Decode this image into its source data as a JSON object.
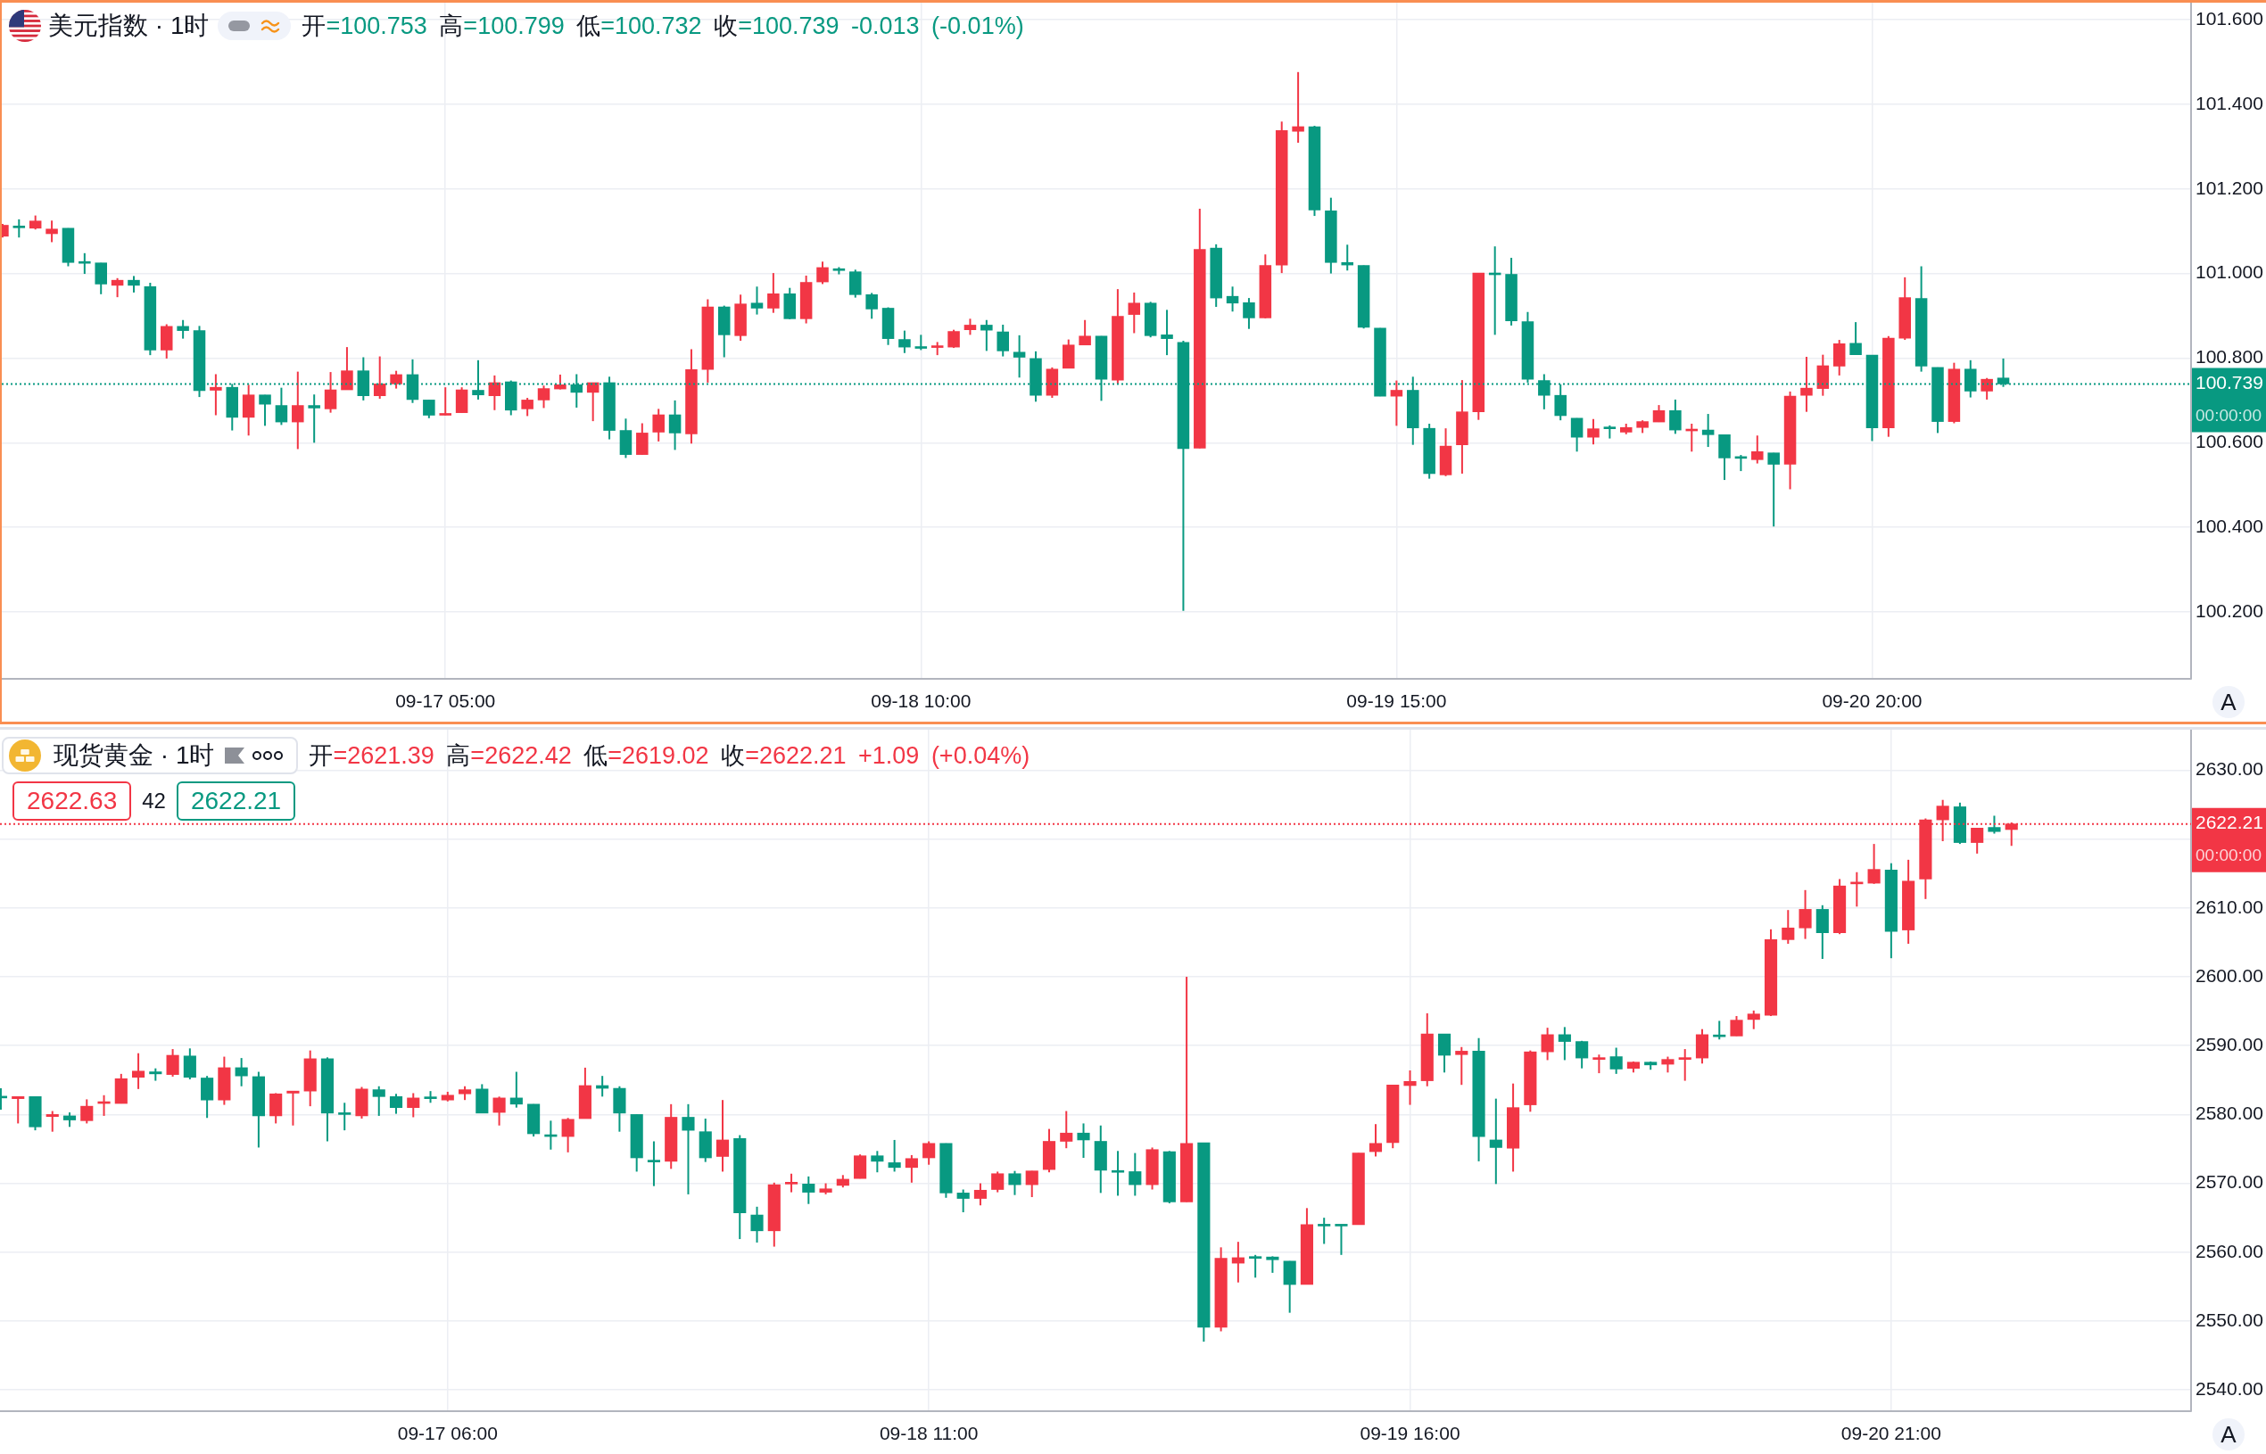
{
  "chart_data": [
    {
      "type": "candlestick",
      "title": "美元指数 · 1时",
      "subtitle": "开=100.753 高=100.799 低=100.732 收=100.739 -0.013 (-0.01%)",
      "categories": [
        null,
        null,
        null,
        null,
        null,
        null,
        null,
        null,
        null,
        null,
        null,
        null,
        null,
        null,
        null,
        null,
        null,
        null,
        null,
        null,
        null,
        null,
        null,
        null,
        null,
        null,
        null,
        "09-17 05:00",
        null,
        null,
        null,
        null,
        null,
        null,
        null,
        null,
        null,
        null,
        null,
        null,
        null,
        null,
        null,
        null,
        null,
        null,
        null,
        null,
        null,
        null,
        null,
        null,
        null,
        null,
        null,
        null,
        "09-18 10:00",
        null,
        null,
        null,
        null,
        null,
        null,
        null,
        null,
        null,
        null,
        null,
        null,
        null,
        null,
        null,
        null,
        null,
        null,
        null,
        null,
        null,
        null,
        null,
        null,
        null,
        null,
        null,
        null,
        "09-19 15:00",
        null,
        null,
        null,
        null,
        null,
        null,
        null,
        null,
        null,
        null,
        null,
        null,
        null,
        null,
        null,
        null,
        null,
        null,
        null,
        null,
        null,
        null,
        null,
        null,
        null,
        null,
        null,
        null,
        "09-20 20:00",
        null,
        null,
        null,
        null,
        null,
        null,
        null,
        null,
        null,
        null,
        null,
        null,
        null,
        null,
        null,
        null,
        null,
        null,
        null
      ],
      "ohlc": [
        [
          101.088,
          101.117,
          101.085,
          101.114
        ],
        [
          101.112,
          101.128,
          101.085,
          101.108
        ],
        [
          101.107,
          101.137,
          101.104,
          101.124
        ],
        [
          101.094,
          101.125,
          101.074,
          101.105
        ],
        [
          101.107,
          101.107,
          101.017,
          101.026
        ],
        [
          101.027,
          101.048,
          100.999,
          101.024
        ],
        [
          101.025,
          101.025,
          100.951,
          100.975
        ],
        [
          100.972,
          100.989,
          100.944,
          100.984
        ],
        [
          100.984,
          100.994,
          100.955,
          100.972
        ],
        [
          100.969,
          100.978,
          100.807,
          100.819
        ],
        [
          100.819,
          100.88,
          100.799,
          100.875
        ],
        [
          100.875,
          100.89,
          100.846,
          100.865
        ],
        [
          100.865,
          100.876,
          100.708,
          100.723
        ],
        [
          100.724,
          100.762,
          100.665,
          100.731
        ],
        [
          100.731,
          100.739,
          100.629,
          100.66
        ],
        [
          100.66,
          100.737,
          100.617,
          100.713
        ],
        [
          100.713,
          100.713,
          100.64,
          100.691
        ],
        [
          100.688,
          100.73,
          100.642,
          100.649
        ],
        [
          100.649,
          100.768,
          100.585,
          100.688
        ],
        [
          100.688,
          100.714,
          100.6,
          100.682
        ],
        [
          100.68,
          100.767,
          100.671,
          100.725
        ],
        [
          100.725,
          100.826,
          100.725,
          100.77
        ],
        [
          100.77,
          100.802,
          100.7,
          100.711
        ],
        [
          100.711,
          100.804,
          100.704,
          100.739
        ],
        [
          100.739,
          100.77,
          100.728,
          100.761
        ],
        [
          100.761,
          100.797,
          100.694,
          100.702
        ],
        [
          100.701,
          100.701,
          100.658,
          100.665
        ],
        [
          100.665,
          100.731,
          100.665,
          100.668
        ],
        [
          100.671,
          100.731,
          100.671,
          100.725
        ],
        [
          100.724,
          100.795,
          100.702,
          100.713
        ],
        [
          100.711,
          100.759,
          100.677,
          100.742
        ],
        [
          100.744,
          100.747,
          100.665,
          100.677
        ],
        [
          100.68,
          100.706,
          100.663,
          100.701
        ],
        [
          100.701,
          100.735,
          100.682,
          100.728
        ],
        [
          100.727,
          100.761,
          100.726,
          100.737
        ],
        [
          100.737,
          100.762,
          100.683,
          100.719
        ],
        [
          100.719,
          100.742,
          100.651,
          100.742
        ],
        [
          100.742,
          100.756,
          100.608,
          100.629
        ],
        [
          100.629,
          100.657,
          100.564,
          100.572
        ],
        [
          100.572,
          100.646,
          100.572,
          100.623
        ],
        [
          100.625,
          100.68,
          100.603,
          100.666
        ],
        [
          100.666,
          100.7,
          100.583,
          100.623
        ],
        [
          100.621,
          100.821,
          100.598,
          100.773
        ],
        [
          100.773,
          100.939,
          100.742,
          100.921
        ],
        [
          100.921,
          100.924,
          100.802,
          100.855
        ],
        [
          100.853,
          100.95,
          100.841,
          100.928
        ],
        [
          100.93,
          100.969,
          100.903,
          100.918
        ],
        [
          100.918,
          101.001,
          100.907,
          100.952
        ],
        [
          100.952,
          100.966,
          100.892,
          100.893
        ],
        [
          100.893,
          100.995,
          100.882,
          100.979
        ],
        [
          100.98,
          101.028,
          100.975,
          101.014
        ],
        [
          101.011,
          101.015,
          100.998,
          101.007
        ],
        [
          101.004,
          101.009,
          100.943,
          100.95
        ],
        [
          100.95,
          100.954,
          100.893,
          100.916
        ],
        [
          100.918,
          100.92,
          100.831,
          100.846
        ],
        [
          100.844,
          100.865,
          100.812,
          100.826
        ],
        [
          100.826,
          100.855,
          100.819,
          100.823
        ],
        [
          100.825,
          100.838,
          100.807,
          100.828
        ],
        [
          100.826,
          100.867,
          100.824,
          100.863
        ],
        [
          100.867,
          100.893,
          100.855,
          100.878
        ],
        [
          100.878,
          100.89,
          100.817,
          100.866
        ],
        [
          100.862,
          100.879,
          100.804,
          100.817
        ],
        [
          100.814,
          100.854,
          100.754,
          100.802
        ],
        [
          100.799,
          100.816,
          100.697,
          100.712
        ],
        [
          100.712,
          100.778,
          100.706,
          100.774
        ],
        [
          100.776,
          100.844,
          100.776,
          100.831
        ],
        [
          100.831,
          100.89,
          100.831,
          100.852
        ],
        [
          100.852,
          100.852,
          100.699,
          100.75
        ],
        [
          100.748,
          100.963,
          100.74,
          100.899
        ],
        [
          100.903,
          100.955,
          100.859,
          100.93
        ],
        [
          100.93,
          100.933,
          100.849,
          100.853
        ],
        [
          100.855,
          100.914,
          100.807,
          100.846
        ],
        [
          100.837,
          100.841,
          100.203,
          100.586
        ],
        [
          100.587,
          101.153,
          100.587,
          101.057
        ],
        [
          101.06,
          101.069,
          100.921,
          100.942
        ],
        [
          100.946,
          100.969,
          100.91,
          100.93
        ],
        [
          100.931,
          100.942,
          100.869,
          100.895
        ],
        [
          100.895,
          101.045,
          100.894,
          101.019
        ],
        [
          101.02,
          101.359,
          101.001,
          101.338
        ],
        [
          101.336,
          101.476,
          101.309,
          101.347
        ],
        [
          101.347,
          101.349,
          101.136,
          101.15
        ],
        [
          101.148,
          101.179,
          101.0,
          101.026
        ],
        [
          101.026,
          101.068,
          101.007,
          101.02
        ],
        [
          101.019,
          101.019,
          100.87,
          100.873
        ],
        [
          100.871,
          100.871,
          100.71,
          100.71
        ],
        [
          100.71,
          100.747,
          100.64,
          100.724
        ],
        [
          100.724,
          100.756,
          100.595,
          100.635
        ],
        [
          100.634,
          100.645,
          100.515,
          100.527
        ],
        [
          100.524,
          100.634,
          100.521,
          100.592
        ],
        [
          100.595,
          100.748,
          100.527,
          100.673
        ],
        [
          100.673,
          101.001,
          100.654,
          101.001
        ],
        [
          101.001,
          101.064,
          100.855,
          100.997
        ],
        [
          100.998,
          101.037,
          100.877,
          100.888
        ],
        [
          100.886,
          100.909,
          100.742,
          100.75
        ],
        [
          100.747,
          100.762,
          100.679,
          100.712
        ],
        [
          100.712,
          100.738,
          100.653,
          100.664
        ],
        [
          100.658,
          100.658,
          100.579,
          100.613
        ],
        [
          100.613,
          100.656,
          100.596,
          100.633
        ],
        [
          100.636,
          100.641,
          100.61,
          100.633
        ],
        [
          100.625,
          100.645,
          100.62,
          100.636
        ],
        [
          100.636,
          100.653,
          100.623,
          100.65
        ],
        [
          100.649,
          100.689,
          100.649,
          100.676
        ],
        [
          100.676,
          100.702,
          100.621,
          100.63
        ],
        [
          100.628,
          100.645,
          100.579,
          100.631
        ],
        [
          100.63,
          100.668,
          100.59,
          100.619
        ],
        [
          100.619,
          100.619,
          100.512,
          100.564
        ],
        [
          100.566,
          100.571,
          100.533,
          100.563
        ],
        [
          100.56,
          100.617,
          100.551,
          100.579
        ],
        [
          100.576,
          100.576,
          100.402,
          100.549
        ],
        [
          100.549,
          100.721,
          100.49,
          100.71
        ],
        [
          100.712,
          100.803,
          100.673,
          100.729
        ],
        [
          100.728,
          100.808,
          100.711,
          100.782
        ],
        [
          100.781,
          100.843,
          100.759,
          100.834
        ],
        [
          100.835,
          100.885,
          100.808,
          100.808
        ],
        [
          100.807,
          100.807,
          100.604,
          100.635
        ],
        [
          100.635,
          100.852,
          100.614,
          100.847
        ],
        [
          100.847,
          100.991,
          100.843,
          100.943
        ],
        [
          100.941,
          101.017,
          100.768,
          100.781
        ],
        [
          100.778,
          100.778,
          100.623,
          100.65
        ],
        [
          100.65,
          100.789,
          100.646,
          100.774
        ],
        [
          100.774,
          100.795,
          100.707,
          100.722
        ],
        [
          100.722,
          100.753,
          100.702,
          100.75
        ],
        [
          100.753,
          100.799,
          100.732,
          100.739
        ],
        null,
        null,
        null,
        null,
        null,
        null,
        null,
        null,
        null,
        null,
        null
      ],
      "colors": [
        "#f23645",
        "#089981",
        "#f23645",
        "#f23645",
        "#089981",
        "#089981",
        "#089981",
        "#f23645",
        "#089981",
        "#089981",
        "#f23645",
        "#089981",
        "#089981",
        "#f23645",
        "#089981",
        "#f23645",
        "#089981",
        "#089981",
        "#f23645",
        "#089981",
        "#f23645",
        "#f23645",
        "#089981",
        "#f23645",
        "#f23645",
        "#089981",
        "#089981",
        "#f23645",
        "#f23645",
        "#089981",
        "#f23645",
        "#089981",
        "#f23645",
        "#f23645",
        "#f23645",
        "#089981",
        "#f23645",
        "#089981",
        "#089981",
        "#f23645",
        "#f23645",
        "#089981",
        "#f23645",
        "#f23645",
        "#089981",
        "#f23645",
        "#089981",
        "#f23645",
        "#089981",
        "#f23645",
        "#f23645",
        "#089981",
        "#089981",
        "#089981",
        "#089981",
        "#089981",
        "#089981",
        "#f23645",
        "#f23645",
        "#f23645",
        "#089981",
        "#089981",
        "#089981",
        "#089981",
        "#f23645",
        "#f23645",
        "#f23645",
        "#089981",
        "#f23645",
        "#f23645",
        "#089981",
        "#089981",
        "#089981",
        "#f23645",
        "#089981",
        "#089981",
        "#089981",
        "#f23645",
        "#f23645",
        "#f23645",
        "#089981",
        "#089981",
        "#089981",
        "#089981",
        "#089981",
        "#f23645",
        "#089981",
        "#089981",
        "#f23645",
        "#f23645",
        "#f23645",
        "#089981",
        "#089981",
        "#089981",
        "#089981",
        "#089981",
        "#089981",
        "#f23645",
        "#089981",
        "#f23645",
        "#f23645",
        "#f23645",
        "#089981",
        "#f23645",
        "#089981",
        "#089981",
        "#089981",
        "#f23645",
        "#089981",
        "#f23645",
        "#f23645",
        "#f23645",
        "#f23645",
        "#089981",
        "#089981",
        "#f23645",
        "#f23645",
        "#089981",
        "#089981",
        "#f23645",
        "#089981",
        "#f23645",
        "#089981",
        null,
        null,
        null,
        null,
        null,
        null,
        null,
        null,
        null,
        null,
        null
      ],
      "ylim": [
        100.042,
        101.64
      ],
      "yticks": [
        {
          "value": 100.2,
          "label": "100.200"
        },
        {
          "value": 100.4,
          "label": "100.400"
        },
        {
          "value": 100.6,
          "label": "100.600"
        },
        {
          "value": 100.8,
          "label": "100.800"
        },
        {
          "value": 101,
          "label": "101.000"
        },
        {
          "value": 101.2,
          "label": "101.200"
        },
        {
          "value": 101.4,
          "label": "101.400"
        },
        {
          "value": 101.6,
          "label": "101.600"
        }
      ],
      "grid": true,
      "ref_lines": [
        {
          "axis": "y",
          "value": 100.739,
          "label": "100.739",
          "color": "#089981",
          "line_style": "dotted"
        }
      ],
      "annotations": [
        "00:00:00",
        "A"
      ]
    },
    {
      "type": "candlestick",
      "title": "现货黄金 · 1时",
      "subtitle": "开=2621.39 高=2622.42 低=2619.02 收=2622.21 +1.09 (+0.04%)",
      "categories": [
        null,
        null,
        null,
        null,
        null,
        null,
        null,
        null,
        null,
        null,
        null,
        null,
        null,
        null,
        null,
        null,
        null,
        null,
        null,
        null,
        null,
        null,
        null,
        null,
        null,
        null,
        "09-17 06:00",
        null,
        null,
        null,
        null,
        null,
        null,
        null,
        null,
        null,
        null,
        null,
        null,
        null,
        null,
        null,
        null,
        null,
        null,
        null,
        null,
        null,
        null,
        null,
        null,
        null,
        null,
        null,
        "09-18 11:00",
        null,
        null,
        null,
        null,
        null,
        null,
        null,
        null,
        null,
        null,
        null,
        null,
        null,
        null,
        null,
        null,
        null,
        null,
        null,
        null,
        null,
        null,
        null,
        null,
        null,
        null,
        null,
        "09-19 16:00",
        null,
        null,
        null,
        null,
        null,
        null,
        null,
        null,
        null,
        null,
        null,
        null,
        null,
        null,
        null,
        null,
        null,
        null,
        null,
        null,
        null,
        null,
        null,
        null,
        null,
        null,
        null,
        "09-20 21:00",
        null,
        null,
        null,
        null,
        null,
        null,
        null,
        null,
        null,
        null,
        null,
        null,
        null,
        null,
        null,
        null,
        null
      ],
      "ohlc": [
        [
          2582.6,
          2583.8,
          2580.7,
          2582.4
        ],
        [
          2582.3,
          2582.6,
          2578.7,
          2582.6
        ],
        [
          2582.6,
          2582.6,
          2577.7,
          2578.2
        ],
        [
          2579.7,
          2580.5,
          2577.5,
          2580.0
        ],
        [
          2579.8,
          2580.3,
          2578.2,
          2579.2
        ],
        [
          2579.1,
          2582.2,
          2578.7,
          2581.2
        ],
        [
          2581.6,
          2582.8,
          2579.8,
          2581.8
        ],
        [
          2581.6,
          2585.9,
          2581.6,
          2585.2
        ],
        [
          2585.4,
          2588.9,
          2583.7,
          2586.3
        ],
        [
          2586.2,
          2586.7,
          2584.9,
          2585.9
        ],
        [
          2585.8,
          2589.5,
          2585.5,
          2588.6
        ],
        [
          2588.5,
          2589.6,
          2585.1,
          2585.4
        ],
        [
          2585.3,
          2585.6,
          2579.5,
          2582.1
        ],
        [
          2582.1,
          2588.4,
          2581.4,
          2586.8
        ],
        [
          2586.8,
          2588.2,
          2584.1,
          2585.6
        ],
        [
          2585.5,
          2586.2,
          2575.2,
          2579.8
        ],
        [
          2579.8,
          2583.1,
          2578.7,
          2583.0
        ],
        [
          2583.1,
          2583.4,
          2578.4,
          2583.4
        ],
        [
          2583.4,
          2589.3,
          2581.2,
          2588.1
        ],
        [
          2588.1,
          2588.3,
          2576.1,
          2580.2
        ],
        [
          2580.2,
          2581.7,
          2577.7,
          2580.0
        ],
        [
          2579.8,
          2584.0,
          2579.4,
          2583.7
        ],
        [
          2583.6,
          2584.1,
          2579.8,
          2582.6
        ],
        [
          2582.6,
          2583.0,
          2580.1,
          2581.0
        ],
        [
          2581.0,
          2583.1,
          2579.6,
          2582.4
        ],
        [
          2582.5,
          2583.4,
          2581.7,
          2582.3
        ],
        [
          2582.1,
          2583.3,
          2581.9,
          2582.8
        ],
        [
          2583.0,
          2584.1,
          2582.1,
          2583.6
        ],
        [
          2583.7,
          2584.4,
          2580.2,
          2580.2
        ],
        [
          2580.3,
          2582.6,
          2578.4,
          2582.4
        ],
        [
          2582.4,
          2586.2,
          2581.0,
          2581.5
        ],
        [
          2581.5,
          2581.5,
          2576.8,
          2577.2
        ],
        [
          2577.0,
          2579.1,
          2574.9,
          2576.8
        ],
        [
          2576.8,
          2579.5,
          2574.5,
          2579.3
        ],
        [
          2579.4,
          2586.8,
          2579.4,
          2584.2
        ],
        [
          2584.2,
          2585.6,
          2582.6,
          2583.8
        ],
        [
          2583.8,
          2584.1,
          2577.5,
          2580.2
        ],
        [
          2580.0,
          2580.0,
          2571.7,
          2573.7
        ],
        [
          2573.3,
          2576.1,
          2569.6,
          2573.1
        ],
        [
          2573.2,
          2581.5,
          2572.1,
          2579.6
        ],
        [
          2579.6,
          2581.5,
          2568.4,
          2577.7
        ],
        [
          2577.5,
          2579.4,
          2573.1,
          2573.7
        ],
        [
          2573.9,
          2582.1,
          2571.7,
          2576.3
        ],
        [
          2576.5,
          2577.0,
          2561.9,
          2565.7
        ],
        [
          2565.4,
          2566.6,
          2561.4,
          2563.1
        ],
        [
          2563.1,
          2570.1,
          2560.8,
          2569.8
        ],
        [
          2569.9,
          2571.4,
          2568.7,
          2570.1
        ],
        [
          2569.9,
          2571.0,
          2567.0,
          2568.7
        ],
        [
          2568.7,
          2570.0,
          2568.4,
          2569.2
        ],
        [
          2569.7,
          2571.2,
          2569.4,
          2570.6
        ],
        [
          2570.7,
          2574.2,
          2570.7,
          2574.0
        ],
        [
          2574.0,
          2574.7,
          2571.6,
          2573.2
        ],
        [
          2573.0,
          2576.3,
          2571.7,
          2572.3
        ],
        [
          2572.3,
          2574.1,
          2570.1,
          2573.6
        ],
        [
          2573.7,
          2576.1,
          2572.7,
          2575.8
        ],
        [
          2575.8,
          2575.8,
          2567.9,
          2568.6
        ],
        [
          2568.6,
          2569.1,
          2565.8,
          2567.8
        ],
        [
          2567.8,
          2570.0,
          2566.8,
          2569.0
        ],
        [
          2569.1,
          2571.7,
          2568.7,
          2571.4
        ],
        [
          2571.4,
          2571.8,
          2568.3,
          2569.8
        ],
        [
          2569.8,
          2571.8,
          2568.0,
          2571.8
        ],
        [
          2572.0,
          2577.9,
          2571.6,
          2576.1
        ],
        [
          2576.1,
          2580.5,
          2575.1,
          2577.3
        ],
        [
          2577.3,
          2578.7,
          2573.7,
          2576.3
        ],
        [
          2576.1,
          2578.4,
          2568.6,
          2571.9
        ],
        [
          2571.8,
          2574.7,
          2568.2,
          2571.6
        ],
        [
          2571.7,
          2574.4,
          2568.2,
          2569.8
        ],
        [
          2569.8,
          2575.2,
          2569.1,
          2574.9
        ],
        [
          2574.6,
          2574.7,
          2567.1,
          2567.3
        ],
        [
          2567.3,
          2600.0,
          2567.3,
          2575.8
        ],
        [
          2575.9,
          2575.9,
          2547.0,
          2549.1
        ],
        [
          2549.1,
          2560.7,
          2548.5,
          2559.1
        ],
        [
          2558.4,
          2561.5,
          2555.6,
          2559.2
        ],
        [
          2559.3,
          2559.6,
          2556.3,
          2559.1
        ],
        [
          2559.3,
          2559.4,
          2557.0,
          2558.9
        ],
        [
          2558.7,
          2558.7,
          2551.2,
          2555.3
        ],
        [
          2555.3,
          2566.4,
          2555.3,
          2564.0
        ],
        [
          2564.0,
          2565.0,
          2561.2,
          2563.8
        ],
        [
          2564.0,
          2564.0,
          2559.6,
          2563.8
        ],
        [
          2564.0,
          2574.4,
          2564.0,
          2574.4
        ],
        [
          2574.6,
          2578.6,
          2573.9,
          2575.8
        ],
        [
          2575.9,
          2584.3,
          2575.1,
          2584.3
        ],
        [
          2584.2,
          2586.4,
          2581.4,
          2584.8
        ],
        [
          2584.9,
          2594.7,
          2584.1,
          2591.7
        ],
        [
          2591.7,
          2591.7,
          2586.1,
          2588.6
        ],
        [
          2588.7,
          2589.8,
          2584.3,
          2589.2
        ],
        [
          2589.2,
          2591.1,
          2573.2,
          2576.8
        ],
        [
          2576.3,
          2582.3,
          2569.9,
          2575.2
        ],
        [
          2575.1,
          2584.5,
          2571.7,
          2581.0
        ],
        [
          2581.4,
          2589.3,
          2580.4,
          2589.1
        ],
        [
          2589.1,
          2592.6,
          2587.9,
          2591.6
        ],
        [
          2591.6,
          2592.7,
          2587.9,
          2590.6
        ],
        [
          2590.6,
          2590.7,
          2586.7,
          2588.2
        ],
        [
          2588.0,
          2588.7,
          2586.0,
          2588.2
        ],
        [
          2588.4,
          2589.7,
          2585.9,
          2586.6
        ],
        [
          2586.7,
          2587.7,
          2586.1,
          2587.6
        ],
        [
          2587.6,
          2587.7,
          2586.5,
          2587.2
        ],
        [
          2587.3,
          2588.4,
          2586.1,
          2588.0
        ],
        [
          2588.0,
          2589.5,
          2584.9,
          2588.1
        ],
        [
          2588.2,
          2592.4,
          2587.4,
          2591.6
        ],
        [
          2591.5,
          2593.6,
          2590.9,
          2591.3
        ],
        [
          2591.4,
          2594.3,
          2591.4,
          2593.7
        ],
        [
          2593.8,
          2595.1,
          2592.4,
          2594.6
        ],
        [
          2594.4,
          2606.9,
          2594.3,
          2605.4
        ],
        [
          2605.4,
          2609.7,
          2604.8,
          2607.1
        ],
        [
          2607.1,
          2612.6,
          2605.5,
          2609.8
        ],
        [
          2609.8,
          2610.4,
          2602.6,
          2606.4
        ],
        [
          2606.4,
          2614.2,
          2606.2,
          2613.2
        ],
        [
          2613.5,
          2615.2,
          2610.2,
          2613.7
        ],
        [
          2613.6,
          2619.3,
          2613.5,
          2615.6
        ],
        [
          2615.5,
          2616.5,
          2602.7,
          2606.6
        ],
        [
          2606.8,
          2617.0,
          2604.8,
          2613.9
        ],
        [
          2614.2,
          2623.0,
          2611.3,
          2622.8
        ],
        [
          2622.8,
          2625.7,
          2619.7,
          2624.8
        ],
        [
          2624.7,
          2625.3,
          2619.3,
          2619.5
        ],
        [
          2619.5,
          2621.6,
          2617.9,
          2621.6
        ],
        [
          2621.7,
          2623.4,
          2620.8,
          2621.1
        ],
        [
          2621.39,
          2622.42,
          2619.02,
          2622.21
        ],
        null,
        null,
        null,
        null,
        null,
        null,
        null,
        null,
        null,
        null
      ],
      "colors": [
        "#089981",
        "#f23645",
        "#089981",
        "#f23645",
        "#089981",
        "#f23645",
        "#f23645",
        "#f23645",
        "#f23645",
        "#089981",
        "#f23645",
        "#089981",
        "#089981",
        "#f23645",
        "#089981",
        "#089981",
        "#f23645",
        "#f23645",
        "#f23645",
        "#089981",
        "#089981",
        "#f23645",
        "#089981",
        "#089981",
        "#f23645",
        "#089981",
        "#f23645",
        "#f23645",
        "#089981",
        "#f23645",
        "#089981",
        "#089981",
        "#089981",
        "#f23645",
        "#f23645",
        "#089981",
        "#089981",
        "#089981",
        "#089981",
        "#f23645",
        "#089981",
        "#089981",
        "#f23645",
        "#089981",
        "#089981",
        "#f23645",
        "#f23645",
        "#089981",
        "#f23645",
        "#f23645",
        "#f23645",
        "#089981",
        "#089981",
        "#f23645",
        "#f23645",
        "#089981",
        "#089981",
        "#f23645",
        "#f23645",
        "#089981",
        "#f23645",
        "#f23645",
        "#f23645",
        "#089981",
        "#089981",
        "#089981",
        "#089981",
        "#f23645",
        "#089981",
        "#f23645",
        "#089981",
        "#f23645",
        "#f23645",
        "#089981",
        "#089981",
        "#089981",
        "#f23645",
        "#089981",
        "#089981",
        "#f23645",
        "#f23645",
        "#f23645",
        "#f23645",
        "#f23645",
        "#089981",
        "#f23645",
        "#089981",
        "#089981",
        "#f23645",
        "#f23645",
        "#f23645",
        "#089981",
        "#089981",
        "#f23645",
        "#089981",
        "#f23645",
        "#089981",
        "#f23645",
        "#f23645",
        "#f23645",
        "#089981",
        "#f23645",
        "#f23645",
        "#f23645",
        "#f23645",
        "#f23645",
        "#089981",
        "#f23645",
        "#f23645",
        "#f23645",
        "#089981",
        "#f23645",
        "#f23645",
        "#f23645",
        "#089981",
        "#f23645",
        "#089981",
        "#f23645",
        null,
        null,
        null,
        null,
        null,
        null,
        null,
        null,
        null,
        null
      ],
      "ylim": [
        2536.9,
        2635.9
      ],
      "yticks": [
        {
          "value": 2540,
          "label": "2540.00"
        },
        {
          "value": 2550,
          "label": "2550.00"
        },
        {
          "value": 2560,
          "label": "2560.00"
        },
        {
          "value": 2570,
          "label": "2570.00"
        },
        {
          "value": 2580,
          "label": "2580.00"
        },
        {
          "value": 2590,
          "label": "2590.00"
        },
        {
          "value": 2600,
          "label": "2600.00"
        },
        {
          "value": 2610,
          "label": "2610.00"
        },
        {
          "value": 2620,
          "label": null
        },
        {
          "value": 2630,
          "label": "2630.00"
        }
      ],
      "grid": true,
      "ref_lines": [
        {
          "axis": "y",
          "value": 2622.21,
          "label": "2622.21",
          "color": "#f23645",
          "line_style": "dotted"
        }
      ],
      "annotations": [
        "2622.63",
        "42",
        "2622.21",
        "00:00:00",
        "A"
      ]
    }
  ]
}
